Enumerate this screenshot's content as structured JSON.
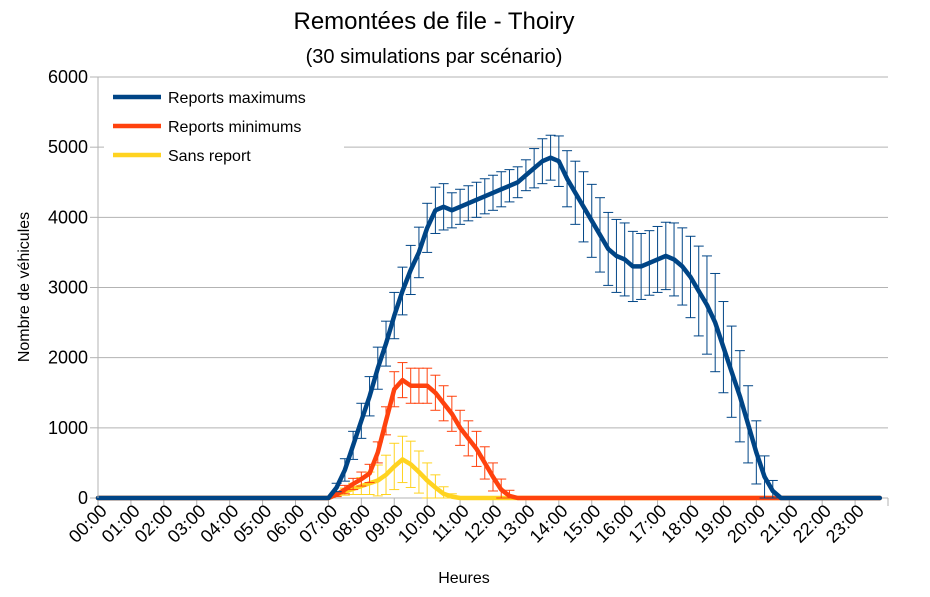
{
  "chart_data": {
    "type": "line",
    "title": "Remontées de file - Thoiry",
    "subtitle": "(30 simulations par scénario)",
    "xlabel": "Heures",
    "ylabel": "Nombre de véhicules",
    "ylim": [
      0,
      6000
    ],
    "yticks": [
      "0",
      "1000",
      "2000",
      "3000",
      "4000",
      "5000",
      "6000"
    ],
    "xticks": [
      "00:00",
      "01:00",
      "02:00",
      "03:00",
      "04:00",
      "05:00",
      "06:00",
      "07:00",
      "08:00",
      "09:00",
      "10:00",
      "11:00",
      "12:00",
      "13:00",
      "14:00",
      "15:00",
      "16:00",
      "17:00",
      "18:00",
      "19:00",
      "20:00",
      "21:00",
      "22:00",
      "23:00"
    ],
    "x_step_hours": 0.25,
    "grid": "horizontal",
    "legend_position": "top-left",
    "series": [
      {
        "name": "Reports maximums",
        "color": "#004586",
        "values": [
          0,
          0,
          0,
          0,
          0,
          0,
          0,
          0,
          0,
          0,
          0,
          0,
          0,
          0,
          0,
          0,
          0,
          0,
          0,
          0,
          0,
          0,
          0,
          0,
          0,
          0,
          0,
          0,
          0,
          150,
          400,
          750,
          1100,
          1450,
          1850,
          2200,
          2600,
          2950,
          3250,
          3500,
          3850,
          4100,
          4150,
          4100,
          4150,
          4200,
          4250,
          4300,
          4350,
          4400,
          4450,
          4500,
          4600,
          4700,
          4800,
          4850,
          4800,
          4550,
          4350,
          4150,
          3950,
          3750,
          3550,
          3450,
          3400,
          3300,
          3300,
          3350,
          3400,
          3450,
          3400,
          3300,
          3150,
          2950,
          2750,
          2500,
          2150,
          1800,
          1450,
          1050,
          650,
          300,
          100,
          0,
          0,
          0,
          0,
          0,
          0,
          0,
          0,
          0,
          0,
          0,
          0,
          0
        ],
        "errors": [
          0,
          0,
          0,
          0,
          0,
          0,
          0,
          0,
          0,
          0,
          0,
          0,
          0,
          0,
          0,
          0,
          0,
          0,
          0,
          0,
          0,
          0,
          0,
          0,
          0,
          0,
          0,
          0,
          0,
          60,
          160,
          200,
          250,
          280,
          300,
          320,
          330,
          340,
          350,
          360,
          350,
          330,
          330,
          250,
          250,
          250,
          250,
          250,
          250,
          250,
          230,
          220,
          220,
          280,
          320,
          320,
          360,
          400,
          450,
          500,
          520,
          530,
          520,
          520,
          520,
          500,
          470,
          460,
          470,
          480,
          520,
          550,
          580,
          640,
          700,
          700,
          650,
          650,
          650,
          550,
          450,
          300,
          150,
          0,
          0,
          0,
          0,
          0,
          0,
          0,
          0,
          0,
          0,
          0,
          0,
          0
        ]
      },
      {
        "name": "Reports minimums",
        "color": "#ff420e",
        "values": [
          0,
          0,
          0,
          0,
          0,
          0,
          0,
          0,
          0,
          0,
          0,
          0,
          0,
          0,
          0,
          0,
          0,
          0,
          0,
          0,
          0,
          0,
          0,
          0,
          0,
          0,
          0,
          0,
          0,
          50,
          120,
          200,
          270,
          350,
          650,
          1100,
          1550,
          1680,
          1600,
          1600,
          1600,
          1500,
          1350,
          1200,
          1000,
          850,
          700,
          500,
          300,
          120,
          30,
          0,
          0,
          0,
          0,
          0,
          0,
          0,
          0,
          0,
          0,
          0,
          0,
          0,
          0,
          0,
          0,
          0,
          0,
          0,
          0,
          0,
          0,
          0,
          0,
          0,
          0,
          0,
          0,
          0,
          0,
          0,
          0,
          0,
          0,
          0,
          0,
          0,
          0,
          0,
          0,
          0,
          0,
          0,
          0,
          0
        ],
        "errors": [
          0,
          0,
          0,
          0,
          0,
          0,
          0,
          0,
          0,
          0,
          0,
          0,
          0,
          0,
          0,
          0,
          0,
          0,
          0,
          0,
          0,
          0,
          0,
          0,
          0,
          0,
          0,
          0,
          0,
          30,
          60,
          80,
          100,
          130,
          150,
          200,
          250,
          250,
          250,
          250,
          250,
          250,
          250,
          250,
          250,
          250,
          250,
          230,
          200,
          150,
          80,
          0,
          0,
          0,
          0,
          0,
          0,
          0,
          0,
          0,
          0,
          0,
          0,
          0,
          0,
          0,
          0,
          0,
          0,
          0,
          0,
          0,
          0,
          0,
          0,
          0,
          0,
          0,
          0,
          0,
          0,
          0,
          0,
          0,
          0,
          0,
          0,
          0,
          0,
          0,
          0,
          0,
          0,
          0,
          0,
          0
        ]
      },
      {
        "name": "Sans report",
        "color": "#ffd320",
        "values": [
          0,
          0,
          0,
          0,
          0,
          0,
          0,
          0,
          0,
          0,
          0,
          0,
          0,
          0,
          0,
          0,
          0,
          0,
          0,
          0,
          0,
          0,
          0,
          0,
          0,
          0,
          0,
          0,
          0,
          50,
          90,
          130,
          170,
          210,
          250,
          330,
          450,
          550,
          480,
          370,
          250,
          150,
          60,
          20,
          0,
          0,
          0,
          0,
          0,
          0,
          0,
          0,
          0,
          0,
          0,
          0,
          0,
          0,
          0,
          0,
          0,
          0,
          0,
          0,
          0,
          0,
          0,
          0,
          0,
          0,
          0,
          0,
          0,
          0,
          0,
          0,
          0,
          0,
          0,
          0,
          0,
          0,
          0,
          0,
          0,
          0,
          0,
          0,
          0,
          0,
          0,
          0,
          0,
          0,
          0,
          0
        ],
        "errors": [
          0,
          0,
          0,
          0,
          0,
          0,
          0,
          0,
          0,
          0,
          0,
          0,
          0,
          0,
          0,
          0,
          0,
          0,
          0,
          0,
          0,
          0,
          0,
          0,
          0,
          0,
          0,
          0,
          0,
          20,
          50,
          80,
          120,
          160,
          220,
          280,
          330,
          330,
          330,
          300,
          250,
          180,
          100,
          40,
          0,
          0,
          0,
          0,
          0,
          0,
          0,
          0,
          0,
          0,
          0,
          0,
          0,
          0,
          0,
          0,
          0,
          0,
          0,
          0,
          0,
          0,
          0,
          0,
          0,
          0,
          0,
          0,
          0,
          0,
          0,
          0,
          0,
          0,
          0,
          0,
          0,
          0,
          0,
          0,
          0,
          0,
          0,
          0,
          0,
          0,
          0,
          0,
          0,
          0,
          0,
          0
        ]
      }
    ]
  }
}
